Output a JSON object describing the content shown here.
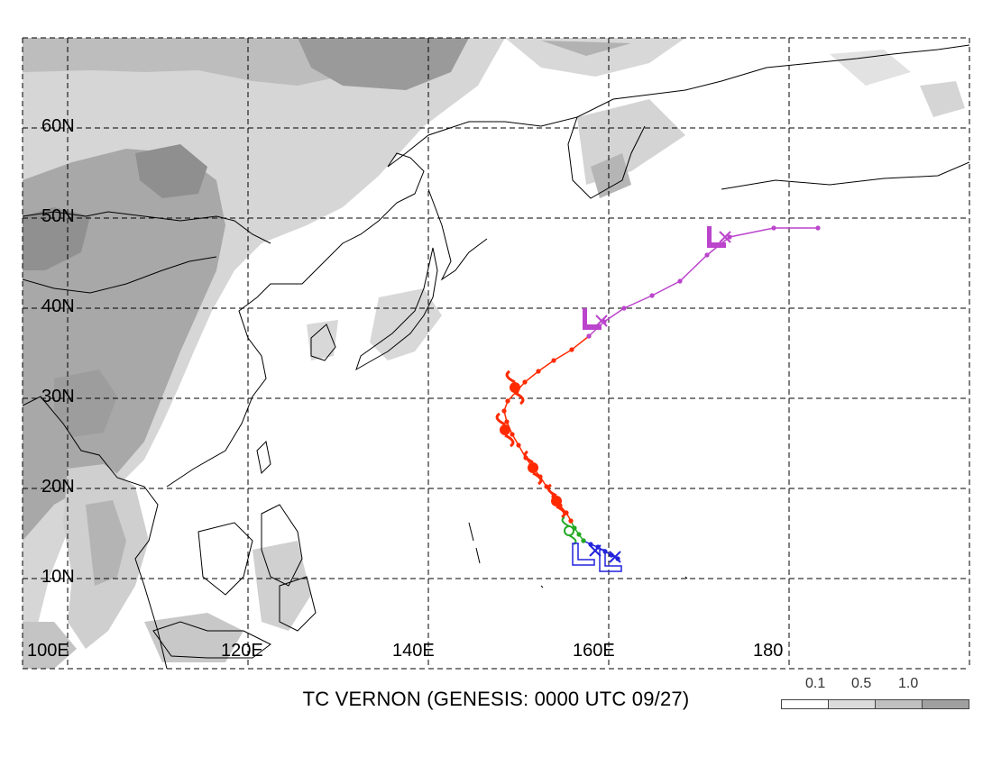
{
  "title": "TC VERNON (GENESIS: 0000 UTC 09/27)",
  "map": {
    "lon_range": [
      100,
      200
    ],
    "lat_range": [
      3,
      70
    ],
    "grid_lons": [
      100,
      120,
      140,
      160,
      180
    ],
    "grid_lats": [
      10,
      20,
      30,
      40,
      50,
      60
    ],
    "lat_labels": [
      "60N",
      "50N",
      "40N",
      "30N",
      "20N",
      "10N"
    ],
    "lon_labels": [
      "100E",
      "120E",
      "140E",
      "160E",
      "180"
    ]
  },
  "legend": {
    "labels": [
      "0.1",
      "0.5",
      "1.0"
    ],
    "colors": [
      "#ffffff",
      "#dcdcdc",
      "#c0c0c0",
      "#a0a0a0"
    ]
  },
  "track": {
    "colors": {
      "low": "#2222dd",
      "storm": "#22aa22",
      "typhoon": "#ff2a00",
      "extratropical": "#bb44cc"
    },
    "segments": [
      {
        "stage": "low",
        "points": [
          [
            161.0,
            12.2
          ],
          [
            160.3,
            12.6
          ],
          [
            159.6,
            13.0
          ],
          [
            158.8,
            13.5
          ],
          [
            158.0,
            13.8
          ],
          [
            157.2,
            14.2
          ]
        ]
      },
      {
        "stage": "storm",
        "points": [
          [
            157.2,
            14.2
          ],
          [
            156.7,
            14.9
          ],
          [
            156.2,
            15.6
          ],
          [
            155.8,
            16.4
          ]
        ]
      },
      {
        "stage": "typhoon",
        "points": [
          [
            155.8,
            16.4
          ],
          [
            155.3,
            17.3
          ],
          [
            154.6,
            18.1
          ],
          [
            153.9,
            19.1
          ],
          [
            153.1,
            20.2
          ],
          [
            152.4,
            21.3
          ],
          [
            151.6,
            22.3
          ],
          [
            150.8,
            23.4
          ],
          [
            150.0,
            24.8
          ],
          [
            149.3,
            26.0
          ],
          [
            148.7,
            27.4
          ],
          [
            148.4,
            28.6
          ],
          [
            148.8,
            29.7
          ],
          [
            149.8,
            30.8
          ],
          [
            150.7,
            31.8
          ],
          [
            152.2,
            33.0
          ],
          [
            153.9,
            34.2
          ],
          [
            155.9,
            35.4
          ],
          [
            157.8,
            36.9
          ]
        ]
      },
      {
        "stage": "extratropical",
        "points": [
          [
            157.8,
            36.9
          ],
          [
            159.5,
            38.5
          ],
          [
            161.7,
            40.0
          ],
          [
            164.8,
            41.4
          ],
          [
            167.9,
            43.0
          ],
          [
            170.9,
            45.9
          ],
          [
            173.4,
            47.9
          ],
          [
            178.3,
            48.9
          ],
          [
            183.2,
            48.9
          ]
        ]
      }
    ],
    "symbols": [
      {
        "type": "typhoon",
        "lon": 149.6,
        "lat": 31.2
      },
      {
        "type": "typhoon",
        "lon": 148.5,
        "lat": 26.5
      },
      {
        "type": "typhoon",
        "lon": 151.6,
        "lat": 22.3
      },
      {
        "type": "typhoon",
        "lon": 154.2,
        "lat": 18.6
      },
      {
        "type": "storm",
        "lon": 155.6,
        "lat": 15.3
      },
      {
        "type": "low",
        "lon": 157.4,
        "lat": 12.9
      },
      {
        "type": "low",
        "lon": 160.4,
        "lat": 12.2
      },
      {
        "type": "cross",
        "lon": 158.5,
        "lat": 13.1
      },
      {
        "type": "cross",
        "lon": 160.7,
        "lat": 12.4
      },
      {
        "type": "extratropical",
        "lon": 158.0,
        "lat": 38.8
      },
      {
        "type": "extratropical",
        "lon": 171.8,
        "lat": 47.9
      },
      {
        "type": "cross",
        "lon": 159.2,
        "lat": 38.6
      },
      {
        "type": "cross",
        "lon": 172.9,
        "lat": 47.9
      }
    ]
  }
}
